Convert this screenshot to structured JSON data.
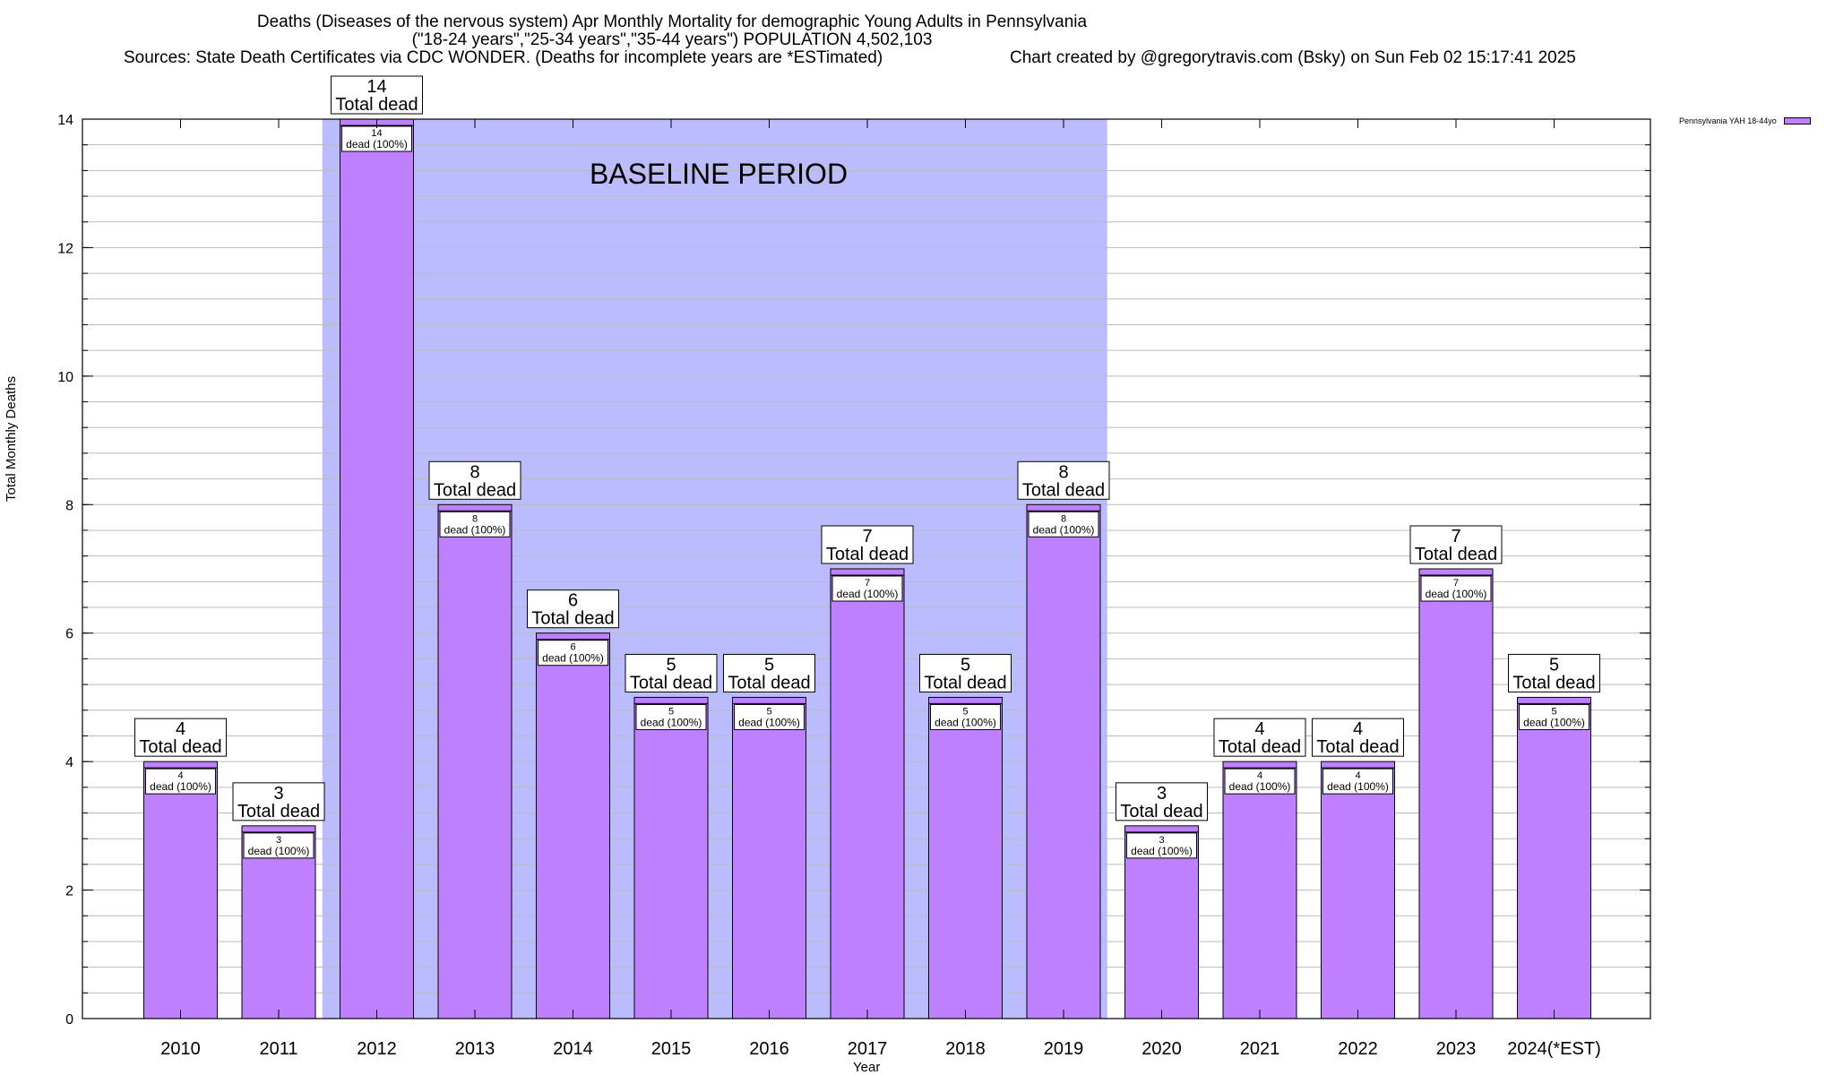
{
  "header": {
    "title_line1": "Deaths (Diseases of the nervous system) Apr Monthly Mortality for demographic Young Adults in Pennsylvania",
    "title_line2": "(\"18-24 years\",\"25-34 years\",\"35-44 years\") POPULATION 4,502,103",
    "sources": "Sources: State Death Certificates via CDC WONDER. (Deaths for incomplete years are *ESTimated)",
    "credit": "Chart created by @gregorytravis.com (Bsky) on Sun Feb 02 15:17:41 2025"
  },
  "chart_data": {
    "type": "bar",
    "title": "Deaths (Diseases of the nervous system) Apr Monthly Mortality for demographic Young Adults in Pennsylvania",
    "xlabel": "Year",
    "ylabel": "Total Monthly Deaths",
    "ylim": [
      0,
      14
    ],
    "y_ticks": [
      0,
      2,
      4,
      6,
      8,
      10,
      12,
      14
    ],
    "grid": true,
    "legend_position": "top-right",
    "bar_color": "#bf80ff",
    "baseline_color": "#bbbbff",
    "baseline_label": "BASELINE PERIOD",
    "baseline_range": [
      "2012",
      "2019"
    ],
    "total_label_suffix": "Total dead",
    "inner_label_suffix": "dead (100%)",
    "categories": [
      "2010",
      "2011",
      "2012",
      "2013",
      "2014",
      "2015",
      "2016",
      "2017",
      "2018",
      "2019",
      "2020",
      "2021",
      "2022",
      "2023",
      "2024(*EST)"
    ],
    "series": [
      {
        "name": "Pennsylvania YAH 18-44yo",
        "values": [
          4,
          3,
          14,
          8,
          6,
          5,
          5,
          7,
          5,
          8,
          3,
          4,
          4,
          7,
          5
        ]
      }
    ]
  }
}
